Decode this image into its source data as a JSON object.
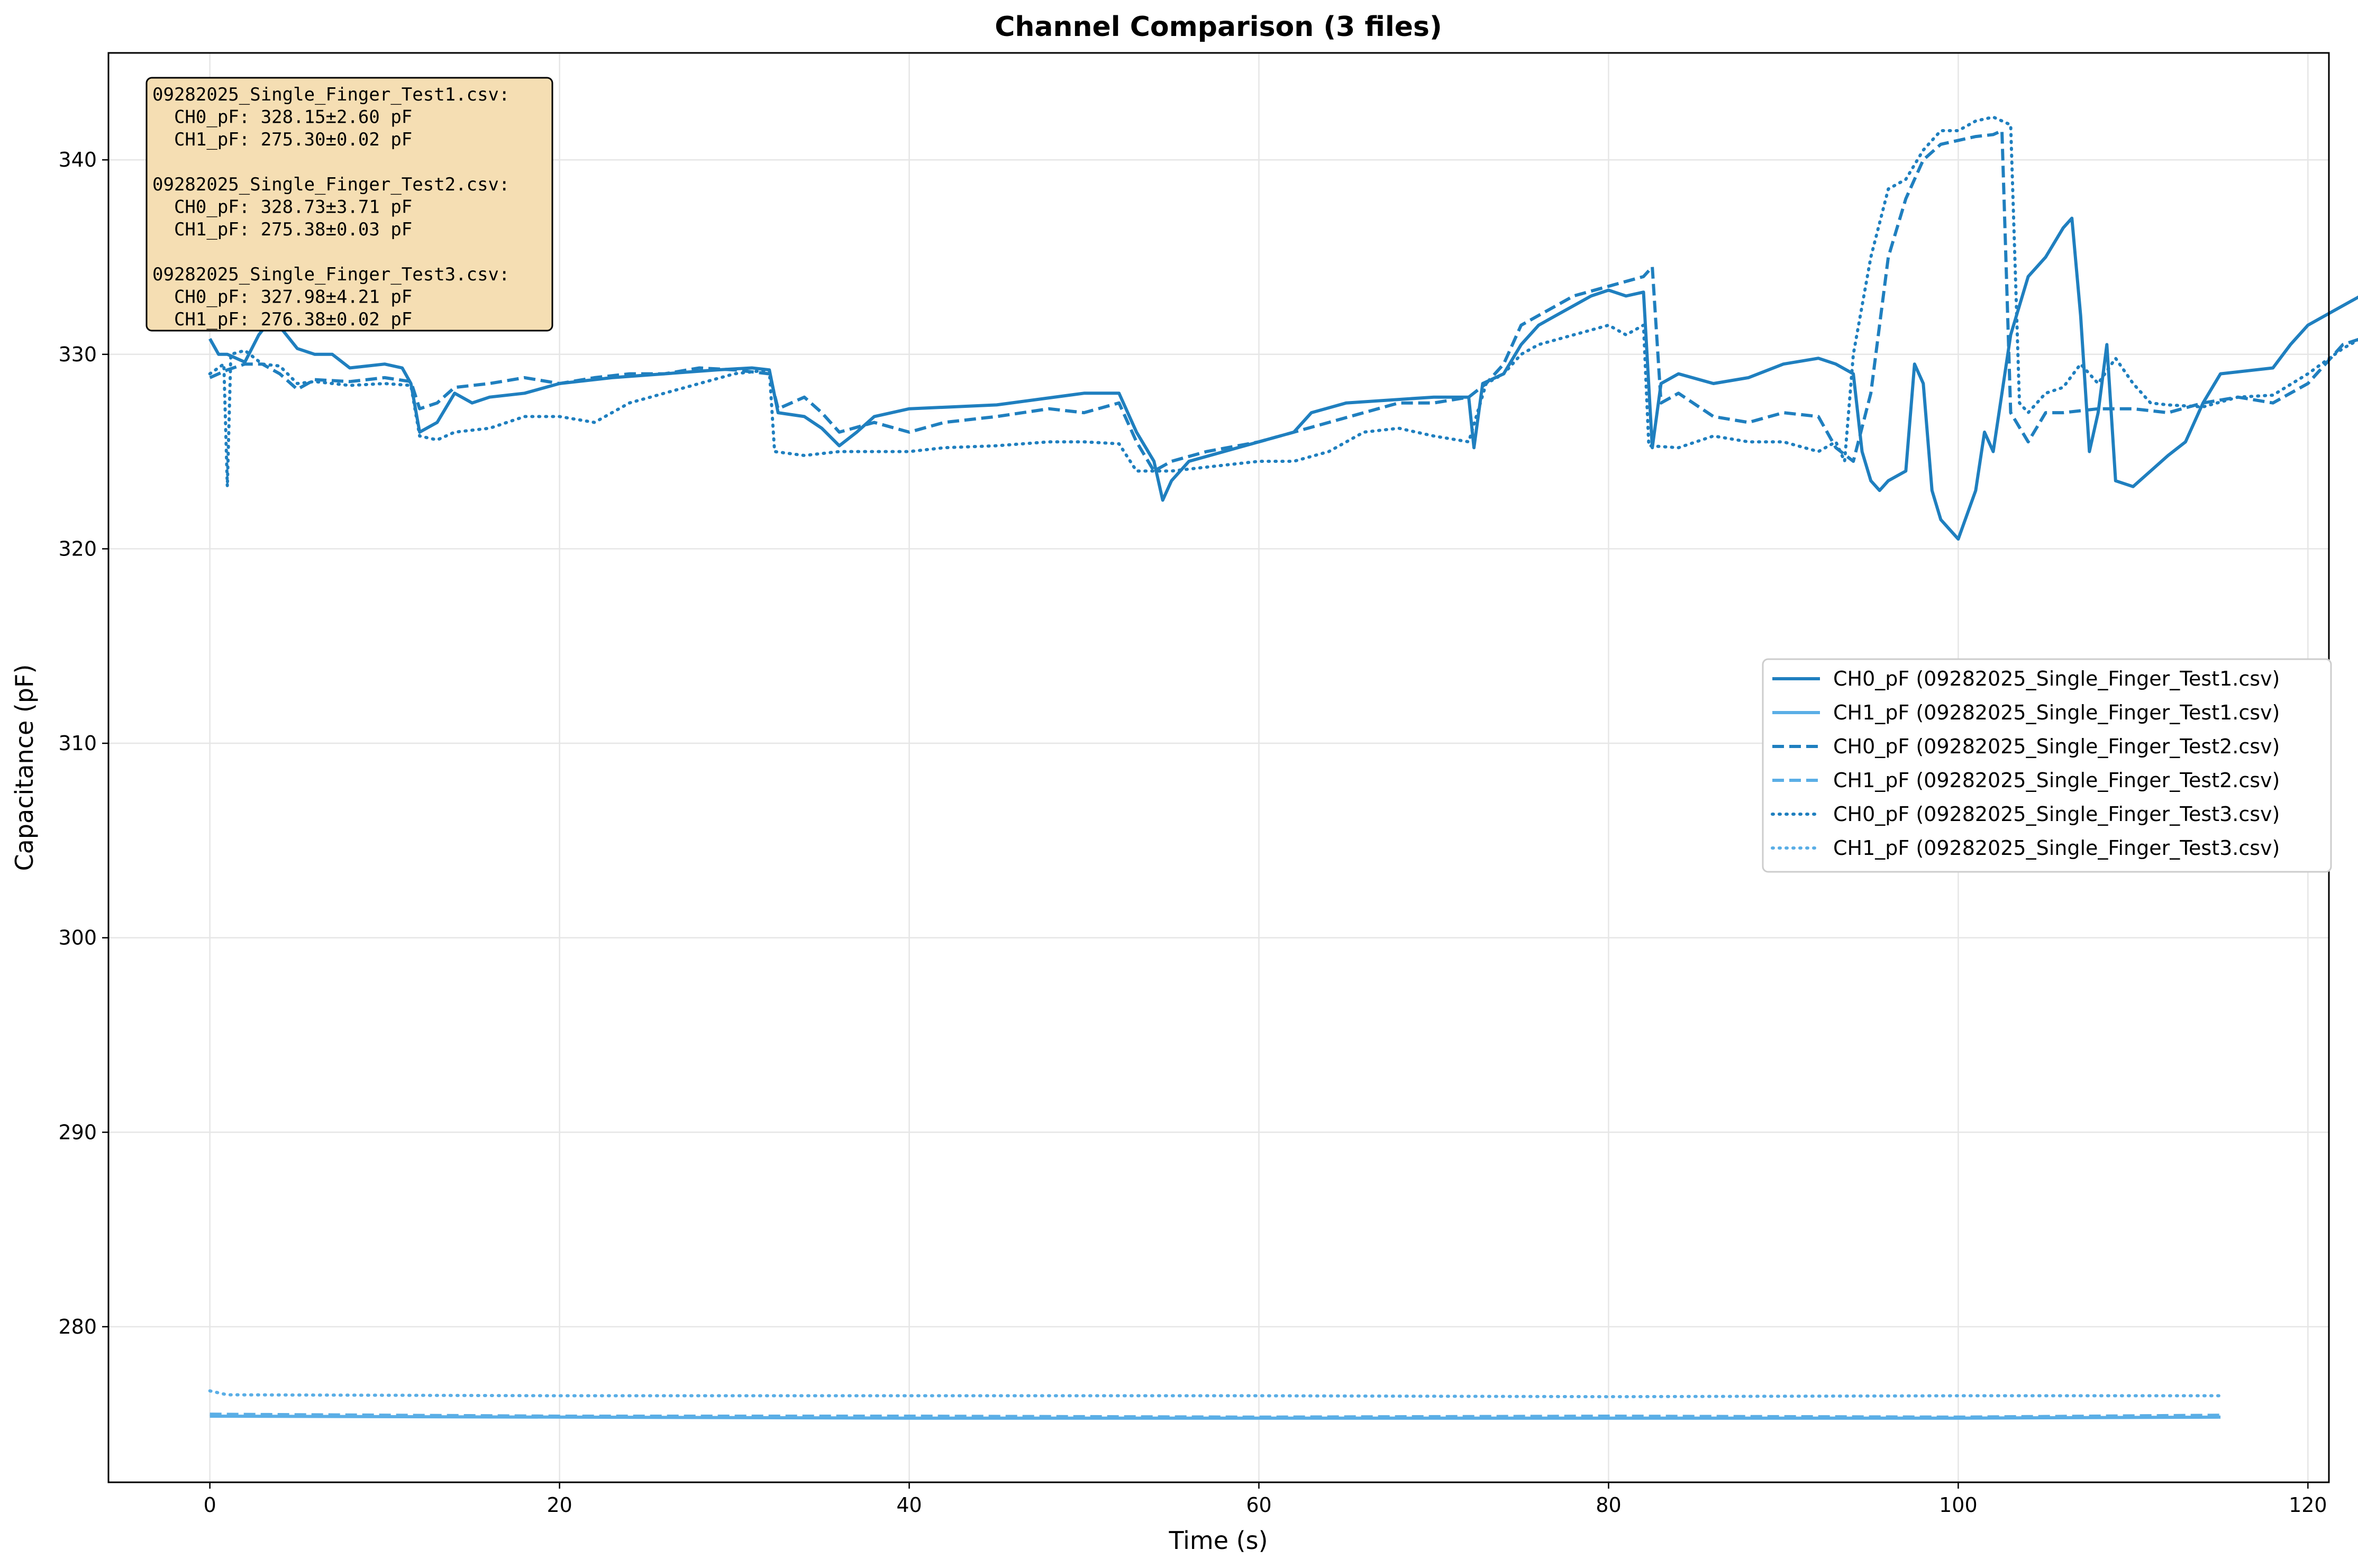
{
  "chart_data": {
    "type": "line",
    "title": "Channel Comparison (3 files)",
    "xlabel": "Time (s)",
    "ylabel": "Capacitance (pF)",
    "xlim": [
      -5.8,
      121.2
    ],
    "ylim": [
      272,
      345.5
    ],
    "x_ticks": [
      0,
      20,
      40,
      60,
      80,
      100,
      120
    ],
    "y_ticks": [
      280,
      290,
      300,
      310,
      320,
      330,
      340
    ],
    "grid": true,
    "legend_position": "center-right",
    "stats_box": {
      "position": "top-left",
      "lines": [
        "09282025_Single_Finger_Test1.csv:",
        "  CH0_pF: 328.15±2.60 pF",
        "  CH1_pF: 275.30±0.02 pF",
        "",
        "09282025_Single_Finger_Test2.csv:",
        "  CH0_pF: 328.73±3.71 pF",
        "  CH1_pF: 275.38±0.03 pF",
        "",
        "09282025_Single_Finger_Test3.csv:",
        "  CH0_pF: 327.98±4.21 pF",
        "  CH1_pF: 276.38±0.02 pF"
      ]
    },
    "series": [
      {
        "name": "CH0_pF (09282025_Single_Finger_Test1.csv)",
        "color": "#1f7fbf",
        "dash": "solid",
        "points": [
          [
            0,
            330.8
          ],
          [
            0.5,
            330
          ],
          [
            1,
            330
          ],
          [
            2,
            329.6
          ],
          [
            2.8,
            331
          ],
          [
            3.5,
            331.8
          ],
          [
            4.2,
            331.2
          ],
          [
            5,
            330.3
          ],
          [
            6,
            330
          ],
          [
            7,
            330
          ],
          [
            8,
            329.3
          ],
          [
            10,
            329.5
          ],
          [
            11,
            329.3
          ],
          [
            11.5,
            328.5
          ],
          [
            12,
            326
          ],
          [
            13,
            326.5
          ],
          [
            14,
            328
          ],
          [
            15,
            327.5
          ],
          [
            16,
            327.8
          ],
          [
            18,
            328
          ],
          [
            20,
            328.5
          ],
          [
            23,
            328.8
          ],
          [
            26,
            329
          ],
          [
            29,
            329.2
          ],
          [
            31,
            329.3
          ],
          [
            32,
            329.2
          ],
          [
            32.5,
            327
          ],
          [
            34,
            326.8
          ],
          [
            35,
            326.2
          ],
          [
            36,
            325.3
          ],
          [
            37,
            326
          ],
          [
            38,
            326.8
          ],
          [
            39,
            327
          ],
          [
            40,
            327.2
          ],
          [
            45,
            327.4
          ],
          [
            50,
            328
          ],
          [
            52,
            328
          ],
          [
            53,
            326
          ],
          [
            54,
            324.5
          ],
          [
            54.5,
            322.5
          ],
          [
            55,
            323.5
          ],
          [
            56,
            324.5
          ],
          [
            58,
            325
          ],
          [
            60,
            325.5
          ],
          [
            62,
            326
          ],
          [
            63,
            327
          ],
          [
            65,
            327.5
          ],
          [
            70,
            327.8
          ],
          [
            72,
            327.8
          ],
          [
            72.3,
            325.2
          ],
          [
            72.8,
            328.5
          ],
          [
            74,
            329
          ],
          [
            75,
            330.5
          ],
          [
            76,
            331.5
          ],
          [
            77,
            332
          ],
          [
            78,
            332.5
          ],
          [
            79,
            333
          ],
          [
            80,
            333.3
          ],
          [
            81,
            333
          ],
          [
            82,
            333.2
          ],
          [
            82.5,
            325.2
          ],
          [
            83,
            328.5
          ],
          [
            84,
            329
          ],
          [
            86,
            328.5
          ],
          [
            88,
            328.8
          ],
          [
            90,
            329.5
          ],
          [
            92,
            329.8
          ],
          [
            93,
            329.5
          ],
          [
            94,
            329
          ],
          [
            94.5,
            325
          ],
          [
            95,
            323.5
          ],
          [
            95.5,
            323
          ],
          [
            96,
            323.5
          ],
          [
            97,
            324
          ],
          [
            97.5,
            329.5
          ],
          [
            98,
            328.5
          ],
          [
            98.5,
            323
          ],
          [
            99,
            321.5
          ],
          [
            100,
            320.5
          ],
          [
            101,
            323
          ],
          [
            101.5,
            326
          ],
          [
            102,
            325
          ],
          [
            103,
            331
          ],
          [
            104,
            334
          ],
          [
            105,
            335
          ],
          [
            106,
            336.5
          ],
          [
            106.5,
            337
          ],
          [
            107,
            332
          ],
          [
            107.5,
            325
          ],
          [
            108,
            327
          ],
          [
            108.5,
            330.5
          ],
          [
            109,
            323.5
          ],
          [
            110,
            323.2
          ],
          [
            112,
            324.8
          ],
          [
            113,
            325.5
          ],
          [
            114,
            327.5
          ],
          [
            115,
            329
          ],
          [
            117,
            329.2
          ],
          [
            118,
            329.3
          ],
          [
            119,
            330.5
          ],
          [
            120,
            331.5
          ],
          [
            121,
            332
          ],
          [
            122,
            332.5
          ],
          [
            123,
            333
          ]
        ]
      },
      {
        "name": "CH1_pF (09282025_Single_Finger_Test1.csv)",
        "color": "#5aaee6",
        "dash": "solid",
        "points": [
          [
            0,
            275.4
          ],
          [
            20,
            275.35
          ],
          [
            40,
            275.3
          ],
          [
            60,
            275.3
          ],
          [
            80,
            275.3
          ],
          [
            100,
            275.3
          ],
          [
            115,
            275.35
          ]
        ]
      },
      {
        "name": "CH0_pF (09282025_Single_Finger_Test2.csv)",
        "color": "#1f7fbf",
        "dash": "dashed",
        "points": [
          [
            0,
            328.8
          ],
          [
            1,
            329.2
          ],
          [
            2,
            329.5
          ],
          [
            3,
            329.5
          ],
          [
            4,
            329
          ],
          [
            5,
            328.2
          ],
          [
            6,
            328.7
          ],
          [
            8,
            328.6
          ],
          [
            10,
            328.8
          ],
          [
            11.5,
            328.6
          ],
          [
            12,
            327.2
          ],
          [
            13,
            327.5
          ],
          [
            14,
            328.3
          ],
          [
            16,
            328.5
          ],
          [
            18,
            328.8
          ],
          [
            20,
            328.5
          ],
          [
            22,
            328.8
          ],
          [
            24,
            329
          ],
          [
            26,
            329
          ],
          [
            28,
            329.3
          ],
          [
            30,
            329.2
          ],
          [
            32,
            329
          ],
          [
            32.5,
            327.2
          ],
          [
            34,
            327.8
          ],
          [
            35,
            327
          ],
          [
            36,
            326
          ],
          [
            38,
            326.5
          ],
          [
            40,
            326
          ],
          [
            42,
            326.5
          ],
          [
            45,
            326.8
          ],
          [
            48,
            327.2
          ],
          [
            50,
            327
          ],
          [
            52,
            327.5
          ],
          [
            53,
            325.5
          ],
          [
            54,
            324
          ],
          [
            55,
            324.5
          ],
          [
            57,
            325
          ],
          [
            60,
            325.5
          ],
          [
            62,
            326
          ],
          [
            64,
            326.5
          ],
          [
            66,
            327
          ],
          [
            68,
            327.5
          ],
          [
            70,
            327.5
          ],
          [
            72,
            327.8
          ],
          [
            73,
            328.5
          ],
          [
            74,
            329.5
          ],
          [
            75,
            331.5
          ],
          [
            76,
            332
          ],
          [
            78,
            333
          ],
          [
            80,
            333.5
          ],
          [
            82,
            334
          ],
          [
            82.5,
            334.5
          ],
          [
            83,
            327.5
          ],
          [
            84,
            328
          ],
          [
            86,
            326.8
          ],
          [
            88,
            326.5
          ],
          [
            90,
            327
          ],
          [
            92,
            326.8
          ],
          [
            93,
            325.2
          ],
          [
            94,
            324.5
          ],
          [
            95,
            328
          ],
          [
            96,
            335
          ],
          [
            97,
            338
          ],
          [
            98,
            340
          ],
          [
            99,
            340.8
          ],
          [
            100,
            341
          ],
          [
            101,
            341.2
          ],
          [
            102,
            341.3
          ],
          [
            102.5,
            341.5
          ],
          [
            103,
            327
          ],
          [
            104,
            325.5
          ],
          [
            105,
            327
          ],
          [
            106,
            327
          ],
          [
            108,
            327.2
          ],
          [
            110,
            327.2
          ],
          [
            112,
            327
          ],
          [
            114,
            327.5
          ],
          [
            116,
            327.8
          ],
          [
            118,
            327.5
          ],
          [
            120,
            328.5
          ],
          [
            122,
            330.5
          ],
          [
            123,
            330.8
          ]
        ]
      },
      {
        "name": "CH1_pF (09282025_Single_Finger_Test2.csv)",
        "color": "#5aaee6",
        "dash": "dashed",
        "points": [
          [
            0,
            275.5
          ],
          [
            20,
            275.4
          ],
          [
            40,
            275.4
          ],
          [
            60,
            275.35
          ],
          [
            80,
            275.4
          ],
          [
            100,
            275.35
          ],
          [
            115,
            275.45
          ]
        ]
      },
      {
        "name": "CH0_pF (09282025_Single_Finger_Test3.csv)",
        "color": "#1f7fbf",
        "dash": "dotted",
        "points": [
          [
            0,
            329
          ],
          [
            0.8,
            329.5
          ],
          [
            1,
            323.2
          ],
          [
            1.2,
            330
          ],
          [
            2,
            330.2
          ],
          [
            3,
            329.5
          ],
          [
            4,
            329.4
          ],
          [
            5,
            328.5
          ],
          [
            6,
            328.6
          ],
          [
            8,
            328.4
          ],
          [
            10,
            328.5
          ],
          [
            11.5,
            328.4
          ],
          [
            12,
            325.8
          ],
          [
            13,
            325.6
          ],
          [
            14,
            326
          ],
          [
            16,
            326.2
          ],
          [
            18,
            326.8
          ],
          [
            20,
            326.8
          ],
          [
            22,
            326.5
          ],
          [
            24,
            327.5
          ],
          [
            26,
            328
          ],
          [
            28,
            328.5
          ],
          [
            30,
            329
          ],
          [
            32,
            329.2
          ],
          [
            32.3,
            325
          ],
          [
            34,
            324.8
          ],
          [
            36,
            325
          ],
          [
            38,
            325
          ],
          [
            40,
            325
          ],
          [
            42,
            325.2
          ],
          [
            45,
            325.3
          ],
          [
            48,
            325.5
          ],
          [
            50,
            325.5
          ],
          [
            52,
            325.4
          ],
          [
            53,
            324
          ],
          [
            55,
            324
          ],
          [
            57,
            324.2
          ],
          [
            60,
            324.5
          ],
          [
            62,
            324.5
          ],
          [
            64,
            325
          ],
          [
            66,
            326
          ],
          [
            68,
            326.2
          ],
          [
            70,
            325.8
          ],
          [
            72,
            325.5
          ],
          [
            73,
            328.5
          ],
          [
            74,
            329
          ],
          [
            75,
            330
          ],
          [
            76,
            330.5
          ],
          [
            78,
            331
          ],
          [
            80,
            331.5
          ],
          [
            81,
            331
          ],
          [
            82,
            331.5
          ],
          [
            82.3,
            325.3
          ],
          [
            84,
            325.2
          ],
          [
            86,
            325.8
          ],
          [
            88,
            325.5
          ],
          [
            90,
            325.5
          ],
          [
            92,
            325
          ],
          [
            93,
            325.5
          ],
          [
            93.5,
            324.5
          ],
          [
            94,
            330
          ],
          [
            95,
            335
          ],
          [
            96,
            338.5
          ],
          [
            97,
            339
          ],
          [
            98,
            340.5
          ],
          [
            99,
            341.5
          ],
          [
            100,
            341.5
          ],
          [
            101,
            342
          ],
          [
            102,
            342.2
          ],
          [
            103,
            341.8
          ],
          [
            103.5,
            327.5
          ],
          [
            104,
            327
          ],
          [
            105,
            328
          ],
          [
            106,
            328.3
          ],
          [
            107,
            329.5
          ],
          [
            108,
            328.5
          ],
          [
            109,
            329.8
          ],
          [
            110,
            328.5
          ],
          [
            111,
            327.5
          ],
          [
            112,
            327.4
          ],
          [
            114,
            327.3
          ],
          [
            116,
            327.8
          ],
          [
            118,
            327.9
          ],
          [
            120,
            329
          ],
          [
            122,
            330.3
          ],
          [
            123,
            330.8
          ]
        ]
      },
      {
        "name": "CH1_pF (09282025_Single_Finger_Test3.csv)",
        "color": "#5aaee6",
        "dash": "dotted",
        "points": [
          [
            0,
            276.7
          ],
          [
            1,
            276.5
          ],
          [
            20,
            276.45
          ],
          [
            40,
            276.45
          ],
          [
            60,
            276.45
          ],
          [
            80,
            276.4
          ],
          [
            100,
            276.45
          ],
          [
            115,
            276.45
          ]
        ]
      }
    ]
  }
}
